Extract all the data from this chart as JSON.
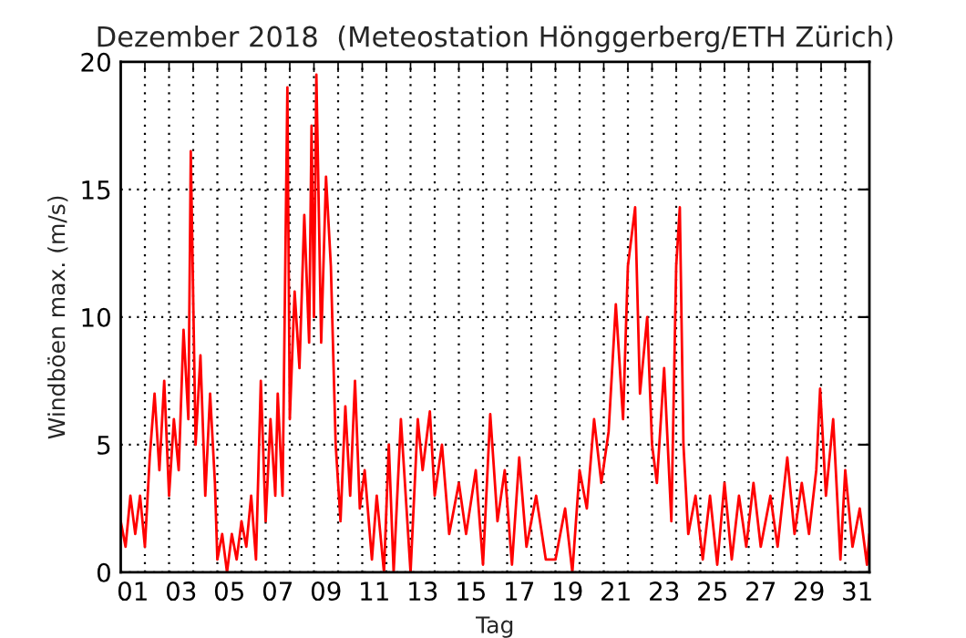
{
  "chart_data": {
    "type": "line",
    "title": "Dezember 2018  (Meteostation Hönggerberg/ETH Zürich)",
    "xlabel": "Tag",
    "ylabel": "Windböen max. (m/s)",
    "x": [
      0,
      0.2,
      0.4,
      0.6,
      0.8,
      1.0,
      1.2,
      1.4,
      1.6,
      1.8,
      2.0,
      2.2,
      2.4,
      2.6,
      2.8,
      2.9,
      3.1,
      3.3,
      3.5,
      3.7,
      3.9,
      4.0,
      4.2,
      4.4,
      4.6,
      4.8,
      5.0,
      5.2,
      5.4,
      5.6,
      5.8,
      6.0,
      6.2,
      6.4,
      6.5,
      6.7,
      6.9,
      7.0,
      7.2,
      7.4,
      7.6,
      7.8,
      7.9,
      8.0,
      8.1,
      8.3,
      8.5,
      8.7,
      8.9,
      9.1,
      9.3,
      9.5,
      9.7,
      9.9,
      10.1,
      10.4,
      10.6,
      10.9,
      11.1,
      11.3,
      11.6,
      12.0,
      12.3,
      12.5,
      12.8,
      13.0,
      13.3,
      13.6,
      14.0,
      14.3,
      14.7,
      15.0,
      15.3,
      15.6,
      15.9,
      16.2,
      16.5,
      16.8,
      17.2,
      17.6,
      18.0,
      18.4,
      18.7,
      19.0,
      19.3,
      19.6,
      19.9,
      20.2,
      20.5,
      20.8,
      21.0,
      21.3,
      21.5,
      21.8,
      22.0,
      22.2,
      22.5,
      22.8,
      23.0,
      23.15,
      23.3,
      23.5,
      23.8,
      24.1,
      24.4,
      24.7,
      25.0,
      25.3,
      25.6,
      25.9,
      26.2,
      26.5,
      26.9,
      27.2,
      27.6,
      27.9,
      28.2,
      28.5,
      28.8,
      28.96,
      29.2,
      29.5,
      29.8,
      30.0,
      30.3,
      30.6,
      30.9,
      31.0
    ],
    "series": [
      {
        "color": "#ff0000",
        "values": [
          2,
          1,
          3,
          1.5,
          3,
          1,
          4.5,
          7,
          4,
          7.5,
          3,
          6,
          4,
          9.5,
          6,
          16.5,
          5,
          8.5,
          3,
          7,
          3.5,
          0.5,
          1.5,
          0,
          1.5,
          0.5,
          2,
          1,
          3,
          0.5,
          7.5,
          2,
          6,
          3,
          7,
          3,
          19,
          6,
          11,
          8,
          14,
          9,
          17.5,
          10,
          19.5,
          9,
          15.5,
          12,
          5,
          2,
          6.5,
          3,
          7.5,
          2.5,
          4,
          0.5,
          3,
          0,
          5,
          0,
          6,
          0,
          6,
          4,
          6.3,
          3,
          5,
          1.5,
          3.5,
          1.5,
          4,
          0.3,
          6.2,
          2,
          4,
          0.3,
          4.5,
          1,
          3,
          0.5,
          0.5,
          2.5,
          0,
          4,
          2.5,
          6,
          3.5,
          5.5,
          10.5,
          6,
          12,
          14.3,
          7,
          10,
          5,
          3.5,
          8,
          2,
          12,
          14.3,
          5,
          1.5,
          3,
          0.5,
          3,
          0.3,
          3.5,
          0.5,
          3,
          1,
          3.5,
          1,
          3,
          1,
          4.5,
          1.5,
          3.5,
          1.5,
          4,
          7.2,
          3,
          6,
          0.5,
          4,
          1,
          2.5,
          0.3,
          1.5
        ]
      }
    ],
    "xlim": [
      0,
      31
    ],
    "ylim": [
      0,
      20
    ],
    "yticks": [
      0,
      5,
      10,
      15,
      20
    ],
    "xticks": [
      {
        "value": 0.5,
        "label": "01"
      },
      {
        "value": 2.5,
        "label": "03"
      },
      {
        "value": 4.5,
        "label": "05"
      },
      {
        "value": 6.5,
        "label": "07"
      },
      {
        "value": 8.5,
        "label": "09"
      },
      {
        "value": 10.5,
        "label": "11"
      },
      {
        "value": 12.5,
        "label": "13"
      },
      {
        "value": 14.5,
        "label": "15"
      },
      {
        "value": 16.5,
        "label": "17"
      },
      {
        "value": 18.5,
        "label": "19"
      },
      {
        "value": 20.5,
        "label": "21"
      },
      {
        "value": 22.5,
        "label": "23"
      },
      {
        "value": 24.5,
        "label": "25"
      },
      {
        "value": 26.5,
        "label": "27"
      },
      {
        "value": 28.5,
        "label": "29"
      },
      {
        "value": 30.5,
        "label": "31"
      },
      {
        "value": 1,
        "label": null
      },
      {
        "value": 2,
        "label": null
      },
      {
        "value": 3,
        "label": null
      },
      {
        "value": 4,
        "label": null
      },
      {
        "value": 5,
        "label": null
      },
      {
        "value": 6,
        "label": null
      },
      {
        "value": 7,
        "label": null
      },
      {
        "value": 8,
        "label": null
      },
      {
        "value": 9,
        "label": null
      },
      {
        "value": 10,
        "label": null
      },
      {
        "value": 11,
        "label": null
      },
      {
        "value": 12,
        "label": null
      },
      {
        "value": 13,
        "label": null
      },
      {
        "value": 14,
        "label": null
      },
      {
        "value": 15,
        "label": null
      },
      {
        "value": 16,
        "label": null
      },
      {
        "value": 17,
        "label": null
      },
      {
        "value": 18,
        "label": null
      },
      {
        "value": 19,
        "label": null
      },
      {
        "value": 20,
        "label": null
      },
      {
        "value": 21,
        "label": null
      },
      {
        "value": 22,
        "label": null
      },
      {
        "value": 23,
        "label": null
      },
      {
        "value": 24,
        "label": null
      },
      {
        "value": 25,
        "label": null
      },
      {
        "value": 26,
        "label": null
      },
      {
        "value": 27,
        "label": null
      },
      {
        "value": 28,
        "label": null
      },
      {
        "value": 29,
        "label": null
      },
      {
        "value": 30,
        "label": null
      }
    ],
    "grid": true
  }
}
